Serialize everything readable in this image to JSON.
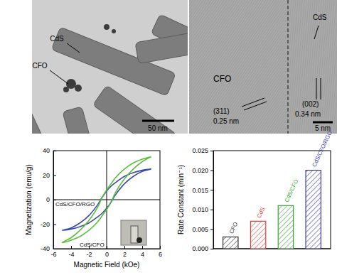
{
  "chart_data": [
    {
      "type": "line",
      "x_label": "Magnetic Field (kOe)",
      "y_label": "Magnetization (emu/g)",
      "x": [
        5,
        4,
        3,
        2,
        1,
        0.5,
        0,
        -0.5,
        -1,
        -2,
        -3,
        -4,
        -5,
        -4,
        -3,
        -2,
        -1,
        -0.5,
        0,
        0.5,
        1,
        2,
        3,
        4,
        5
      ],
      "series": [
        {
          "name": "CdS/CFO/RGO",
          "color": "#3b4cb0",
          "line_style": "solid",
          "values": [
            25,
            24,
            22,
            19,
            14,
            11,
            7,
            2,
            -4,
            -13,
            -19,
            -23,
            -25,
            -24,
            -22,
            -19,
            -14,
            -11,
            -7,
            -2,
            4,
            13,
            19,
            23,
            25
          ]
        },
        {
          "name": "CdS/CFO",
          "color": "#5cbf3c",
          "line_style": "solid",
          "values": [
            35,
            33,
            30,
            25,
            18,
            13,
            8,
            2,
            -6,
            -17,
            -25,
            -31,
            -35,
            -33,
            -30,
            -25,
            -18,
            -13,
            -8,
            -2,
            6,
            17,
            25,
            31,
            35
          ]
        }
      ],
      "xlim": [
        -6,
        6
      ],
      "xticks": [
        -6,
        -4,
        -2,
        0,
        2,
        4,
        6
      ],
      "ylim": [
        -40,
        40
      ],
      "yticks": [
        -40,
        -20,
        0,
        20,
        40
      ]
    },
    {
      "type": "bar",
      "y_label": "Rate Constant (min⁻¹)",
      "categories": [
        "CFO",
        "CdS",
        "CdS/CFO",
        "CdS/CFO/RGO"
      ],
      "values": [
        0.003,
        0.007,
        0.011,
        0.02
      ],
      "colors": [
        "#333333",
        "#e0443c",
        "#3aa63a",
        "#3a3aa8"
      ],
      "ylim": [
        0,
        0.025
      ],
      "yticks": [
        {
          "value": 0,
          "label": "0.000"
        },
        {
          "value": 0.005,
          "label": "0.005"
        },
        {
          "value": 0.01,
          "label": "0.010"
        },
        {
          "value": 0.015,
          "label": "0.015"
        },
        {
          "value": 0.02,
          "label": "0.020"
        },
        {
          "value": 0.025,
          "label": "0.025"
        }
      ],
      "tick_labels": "y"
    }
  ],
  "tem_images": [
    {
      "labels": [
        "CdS",
        "CFO"
      ],
      "scale_bar": "50 nm"
    },
    {
      "labels": [
        "CFO",
        "CdS",
        "(311)",
        "0.25 nm",
        "(002)",
        "0.34 nm"
      ],
      "scale_bar": "5 nm"
    }
  ]
}
